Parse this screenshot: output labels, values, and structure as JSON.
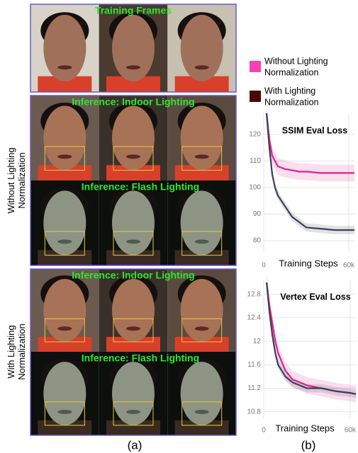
{
  "panel_a": {
    "row_labels": [
      [
        "Without Lighting",
        "Normalization"
      ],
      [
        "With Lighting",
        "Normalization"
      ]
    ],
    "overlays": [
      "Training Frames",
      "Inference: Indoor Lighting",
      "Inference: Flash Lighting",
      "Inference: Indoor Lighting",
      "Inference: Flash Lighting"
    ],
    "caption": "(a)"
  },
  "panel_b": {
    "legend": [
      {
        "lines": [
          "Without Lighting",
          "Normalization"
        ],
        "color": "#ff3db4"
      },
      {
        "lines": [
          "With Lighting",
          "Normalization"
        ],
        "color": "#4a0808"
      }
    ],
    "caption": "(b)"
  },
  "chart_data": [
    {
      "type": "line",
      "title": "SSIM Eval Loss",
      "xlabel": "Training Steps",
      "x": [
        2000,
        4000,
        6000,
        8000,
        10000,
        15000,
        20000,
        25000,
        30000,
        40000,
        50000,
        60000,
        64000
      ],
      "series": [
        {
          "color": "#e0208c",
          "values": [
            128,
            118,
            112,
            110,
            108,
            107,
            106.5,
            106,
            106,
            105.5,
            105.5,
            105.5,
            105.5
          ]
        },
        {
          "color": "#3c3f5a",
          "values": [
            128,
            115,
            105,
            100,
            97,
            93,
            89,
            87,
            85,
            84.5,
            84,
            84,
            84
          ]
        }
      ],
      "xlim": [
        0,
        64000
      ],
      "ylim": [
        76,
        128
      ],
      "xticks": [
        0,
        {
          "value": 60000,
          "label": "60k"
        }
      ],
      "yticks": [
        80,
        90,
        100,
        110,
        120
      ],
      "grid": true
    },
    {
      "type": "line",
      "title": "Vertex Eval Loss",
      "xlabel": "Training Steps",
      "x": [
        2000,
        4000,
        6000,
        8000,
        10000,
        15000,
        20000,
        25000,
        30000,
        40000,
        50000,
        60000,
        64000
      ],
      "series": [
        {
          "color": "#e0208c",
          "values": [
            13.0,
            12.6,
            12.3,
            12.0,
            11.8,
            11.5,
            11.35,
            11.3,
            11.25,
            11.2,
            11.15,
            11.12,
            11.1
          ]
        },
        {
          "color": "#3c3f5a",
          "values": [
            13.0,
            12.5,
            12.1,
            11.8,
            11.6,
            11.4,
            11.3,
            11.25,
            11.2,
            11.2,
            11.15,
            11.12,
            11.1
          ]
        }
      ],
      "xlim": [
        0,
        64000
      ],
      "ylim": [
        10.7,
        13.05
      ],
      "xticks": [
        0,
        {
          "value": 60000,
          "label": "60k"
        }
      ],
      "yticks": [
        10.8,
        11.2,
        11.6,
        12,
        12.4,
        12.8
      ],
      "grid": true
    }
  ]
}
